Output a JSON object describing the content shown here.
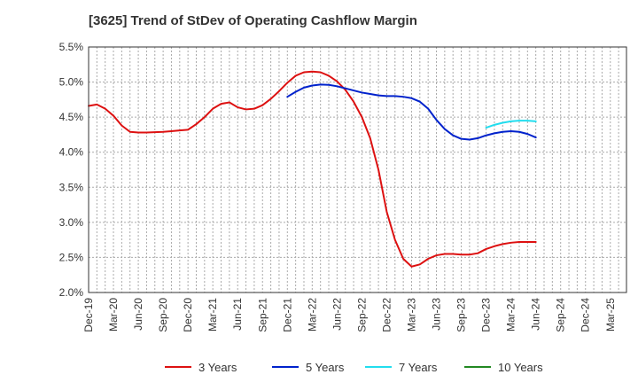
{
  "chart_data": {
    "type": "line",
    "title": "[3625]  Trend of StDev of Operating Cashflow Margin",
    "xlabel": "",
    "ylabel": "",
    "ylim": [
      2.0,
      5.5
    ],
    "y_ticks": [
      "2.0%",
      "2.5%",
      "3.0%",
      "3.5%",
      "4.0%",
      "4.5%",
      "5.0%",
      "5.5%"
    ],
    "x_ticks": [
      "Dec-19",
      "Mar-20",
      "Jun-20",
      "Sep-20",
      "Dec-20",
      "Mar-21",
      "Jun-21",
      "Sep-21",
      "Dec-21",
      "Mar-22",
      "Jun-22",
      "Sep-22",
      "Dec-22",
      "Mar-23",
      "Jun-23",
      "Sep-23",
      "Dec-23",
      "Mar-24",
      "Jun-24",
      "Sep-24",
      "Dec-24",
      "Mar-25"
    ],
    "grid": true,
    "legend_position": "bottom",
    "series": [
      {
        "name": "3 Years",
        "color": "#dd1111",
        "points": [
          [
            "2019-12",
            4.66
          ],
          [
            "2020-01",
            4.68
          ],
          [
            "2020-02",
            4.62
          ],
          [
            "2020-03",
            4.52
          ],
          [
            "2020-04",
            4.38
          ],
          [
            "2020-05",
            4.29
          ],
          [
            "2020-06",
            4.28
          ],
          [
            "2020-07",
            4.28
          ],
          [
            "2020-08",
            4.285
          ],
          [
            "2020-09",
            4.29
          ],
          [
            "2020-10",
            4.3
          ],
          [
            "2020-11",
            4.31
          ],
          [
            "2020-12",
            4.32
          ],
          [
            "2021-01",
            4.4
          ],
          [
            "2021-02",
            4.5
          ],
          [
            "2021-03",
            4.62
          ],
          [
            "2021-04",
            4.69
          ],
          [
            "2021-05",
            4.71
          ],
          [
            "2021-06",
            4.64
          ],
          [
            "2021-07",
            4.61
          ],
          [
            "2021-08",
            4.62
          ],
          [
            "2021-09",
            4.67
          ],
          [
            "2021-10",
            4.76
          ],
          [
            "2021-11",
            4.87
          ],
          [
            "2021-12",
            4.99
          ],
          [
            "2022-01",
            5.09
          ],
          [
            "2022-02",
            5.14
          ],
          [
            "2022-03",
            5.15
          ],
          [
            "2022-04",
            5.14
          ],
          [
            "2022-05",
            5.09
          ],
          [
            "2022-06",
            5.01
          ],
          [
            "2022-07",
            4.89
          ],
          [
            "2022-08",
            4.72
          ],
          [
            "2022-09",
            4.5
          ],
          [
            "2022-10",
            4.2
          ],
          [
            "2022-11",
            3.75
          ],
          [
            "2022-12",
            3.15
          ],
          [
            "2023-01",
            2.75
          ],
          [
            "2023-02",
            2.48
          ],
          [
            "2023-03",
            2.37
          ],
          [
            "2023-04",
            2.4
          ],
          [
            "2023-05",
            2.48
          ],
          [
            "2023-06",
            2.53
          ],
          [
            "2023-07",
            2.55
          ],
          [
            "2023-08",
            2.55
          ],
          [
            "2023-09",
            2.54
          ],
          [
            "2023-10",
            2.54
          ],
          [
            "2023-11",
            2.56
          ],
          [
            "2023-12",
            2.62
          ],
          [
            "2024-01",
            2.66
          ],
          [
            "2024-02",
            2.69
          ],
          [
            "2024-03",
            2.71
          ],
          [
            "2024-04",
            2.72
          ],
          [
            "2024-05",
            2.72
          ],
          [
            "2024-06",
            2.72
          ]
        ]
      },
      {
        "name": "5 Years",
        "color": "#0022cc",
        "points": [
          [
            "2021-12",
            4.79
          ],
          [
            "2022-01",
            4.86
          ],
          [
            "2022-02",
            4.92
          ],
          [
            "2022-03",
            4.95
          ],
          [
            "2022-04",
            4.965
          ],
          [
            "2022-05",
            4.96
          ],
          [
            "2022-06",
            4.94
          ],
          [
            "2022-07",
            4.91
          ],
          [
            "2022-08",
            4.88
          ],
          [
            "2022-09",
            4.85
          ],
          [
            "2022-10",
            4.83
          ],
          [
            "2022-11",
            4.81
          ],
          [
            "2022-12",
            4.8
          ],
          [
            "2023-01",
            4.8
          ],
          [
            "2023-02",
            4.79
          ],
          [
            "2023-03",
            4.77
          ],
          [
            "2023-04",
            4.72
          ],
          [
            "2023-05",
            4.62
          ],
          [
            "2023-06",
            4.46
          ],
          [
            "2023-07",
            4.33
          ],
          [
            "2023-08",
            4.24
          ],
          [
            "2023-09",
            4.19
          ],
          [
            "2023-10",
            4.18
          ],
          [
            "2023-11",
            4.2
          ],
          [
            "2023-12",
            4.24
          ],
          [
            "2024-01",
            4.27
          ],
          [
            "2024-02",
            4.29
          ],
          [
            "2024-03",
            4.3
          ],
          [
            "2024-04",
            4.29
          ],
          [
            "2024-05",
            4.26
          ],
          [
            "2024-06",
            4.21
          ]
        ]
      },
      {
        "name": "7 Years",
        "color": "#22ddee",
        "points": [
          [
            "2023-12",
            4.35
          ],
          [
            "2024-01",
            4.39
          ],
          [
            "2024-02",
            4.42
          ],
          [
            "2024-03",
            4.44
          ],
          [
            "2024-04",
            4.45
          ],
          [
            "2024-05",
            4.45
          ],
          [
            "2024-06",
            4.44
          ]
        ]
      },
      {
        "name": "10 Years",
        "color": "#228822",
        "points": []
      }
    ]
  }
}
